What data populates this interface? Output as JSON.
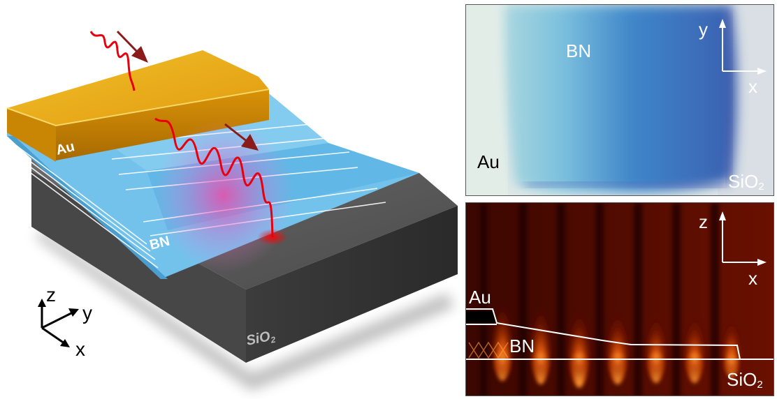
{
  "schematic": {
    "gold_label": "Au",
    "film_label": "BN",
    "substrate_label": "SiO",
    "substrate_sub": "2",
    "axes": {
      "z": "z",
      "y": "y",
      "x": "x"
    }
  },
  "optical_image": {
    "bn_label": "BN",
    "gold_label": "Au",
    "substrate_label": "SiO",
    "substrate_sub": "2",
    "axis_vertical": "y",
    "axis_horizontal": "x"
  },
  "field_map": {
    "gold_label": "Au",
    "bn_label": "BN",
    "substrate_label": "SiO",
    "substrate_sub": "2",
    "axis_vertical": "z",
    "axis_horizontal": "x"
  },
  "colors": {
    "gold": "#e2a214",
    "bn_film": "#73c3ec",
    "substrate": "#545454",
    "wave": "#e8000e",
    "arrow": "#8b1a1a",
    "field_bg": "#5a0b00",
    "field_hot": "#ffb042"
  }
}
